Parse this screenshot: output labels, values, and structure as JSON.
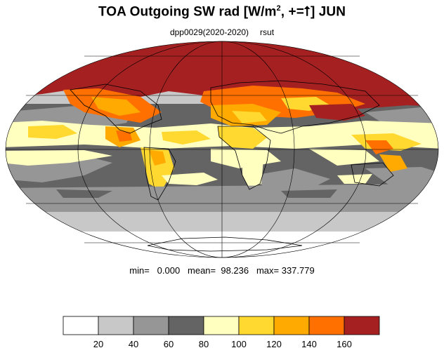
{
  "title": {
    "main": "TOA Outgoing SW rad [W/m",
    "sup": "2",
    "rest": ", +=",
    "arrow": "⭡",
    "end": "] JUN"
  },
  "subtitle": {
    "experiment": "dpp0029(2020-2020)",
    "variable": "rsut"
  },
  "stats": {
    "text": "min=   0.000   mean=  98.236   max= 337.779"
  },
  "map": {
    "projection": "Mollweide",
    "land_outline_color": "#000000",
    "grid_color": "#000000"
  },
  "colorbar": {
    "levels": [
      "20",
      "40",
      "60",
      "80",
      "100",
      "120",
      "140",
      "160"
    ],
    "colors": [
      "#ffffff",
      "#c8c8c8",
      "#969696",
      "#646464",
      "#ffffc0",
      "#ffd830",
      "#ffaa00",
      "#ff7000",
      "#a52020"
    ]
  }
}
